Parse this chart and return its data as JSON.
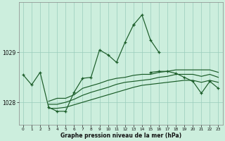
{
  "background_color": "#cceedd",
  "grid_color": "#99ccbb",
  "line_color": "#1a5c28",
  "title": "Graphe pression niveau de la mer (hPa)",
  "xlabel_hours": [
    0,
    1,
    2,
    3,
    4,
    5,
    6,
    7,
    8,
    9,
    10,
    11,
    12,
    13,
    14,
    15,
    16,
    17,
    18,
    19,
    20,
    21,
    22,
    23
  ],
  "yticks": [
    1028,
    1029
  ],
  "ylim": [
    1027.55,
    1030.0
  ],
  "xlim": [
    -0.5,
    23.5
  ],
  "series": {
    "line1": [
      1028.55,
      1028.35,
      1028.6,
      1027.9,
      1027.82,
      1027.82,
      1028.2,
      1028.48,
      1028.5,
      1029.05,
      1028.95,
      1028.8,
      1029.2,
      1029.55,
      1029.0,
      1028.6,
      1028.62,
      1028.62,
      1028.58,
      1028.5,
      1028.42,
      1028.18,
      1028.42,
      1028.28
    ],
    "line_spike": [
      1028.55,
      1028.35,
      1028.6,
      1027.9,
      1027.82,
      1027.82,
      1028.2,
      1028.48,
      1028.5,
      1029.05,
      1028.95,
      1028.8,
      1029.2,
      1029.55,
      1029.75,
      1029.25,
      1029.0,
      1028.6,
      1028.62,
      1028.62,
      1028.58,
      1028.5,
      1028.42,
      1028.18
    ],
    "line2": [
      1028.22,
      null,
      null,
      1028.02,
      1028.08,
      1028.08,
      1028.15,
      1028.28,
      1028.33,
      1028.38,
      1028.44,
      1028.48,
      1028.5,
      1028.54,
      1028.56,
      1028.56,
      1028.6,
      1028.62,
      1028.65,
      1028.65,
      1028.65,
      1028.65,
      1028.65,
      1028.6
    ],
    "line3": [
      1028.15,
      null,
      null,
      1027.96,
      1027.96,
      1028.0,
      1028.06,
      1028.14,
      1028.2,
      1028.25,
      1028.3,
      1028.36,
      1028.4,
      1028.42,
      1028.44,
      1028.46,
      1028.5,
      1028.52,
      1028.56,
      1028.56,
      1028.56,
      1028.52,
      1028.56,
      1028.5
    ],
    "line4": [
      1028.1,
      null,
      null,
      1027.88,
      1027.88,
      1027.9,
      1027.95,
      1028.0,
      1028.05,
      1028.1,
      1028.15,
      1028.2,
      1028.25,
      1028.3,
      1028.34,
      1028.36,
      1028.38,
      1028.4,
      1028.42,
      1028.44,
      1028.44,
      1028.4,
      1028.44,
      1028.4
    ]
  }
}
